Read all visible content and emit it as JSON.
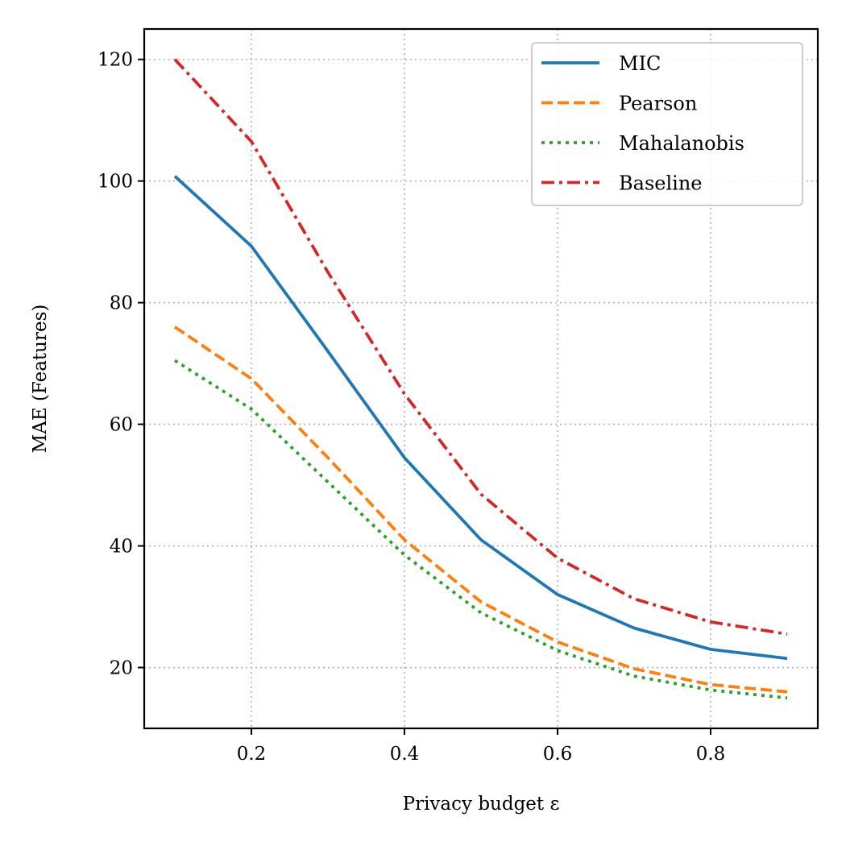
{
  "chart_data": {
    "type": "line",
    "title": "",
    "xlabel": "Privacy budget ε",
    "ylabel": "MAE (Features)",
    "xlim": [
      0.06,
      0.94
    ],
    "ylim": [
      10,
      125
    ],
    "xticks": [
      0.2,
      0.4,
      0.6,
      0.8
    ],
    "xtick_labels": [
      "0.2",
      "0.4",
      "0.6",
      "0.8"
    ],
    "yticks": [
      20,
      40,
      60,
      80,
      100,
      120
    ],
    "ytick_labels": [
      "20",
      "40",
      "60",
      "80",
      "100",
      "120"
    ],
    "grid": true,
    "legend_position": "top-right",
    "x": [
      0.1,
      0.2,
      0.3,
      0.4,
      0.5,
      0.6,
      0.7,
      0.8,
      0.9
    ],
    "series": [
      {
        "name": "MIC",
        "color": "#1f77b4",
        "dash": "solid",
        "values": [
          100.8,
          89.3,
          72.0,
          54.5,
          41.0,
          32.0,
          26.5,
          23.0,
          21.5
        ]
      },
      {
        "name": "Pearson",
        "color": "#ff7f0e",
        "dash": "dashed",
        "values": [
          76.0,
          67.5,
          54.5,
          41.0,
          30.8,
          24.2,
          19.8,
          17.2,
          16.0
        ]
      },
      {
        "name": "Mahalanobis",
        "color": "#2ca02c",
        "dash": "dotted",
        "values": [
          70.5,
          62.5,
          50.5,
          38.5,
          29.0,
          22.8,
          18.6,
          16.3,
          15.0
        ]
      },
      {
        "name": "Baseline",
        "color": "#d62728",
        "dash": "dashdot",
        "values": [
          120.0,
          106.5,
          85.0,
          65.0,
          48.5,
          38.0,
          31.3,
          27.5,
          25.5
        ]
      }
    ]
  }
}
